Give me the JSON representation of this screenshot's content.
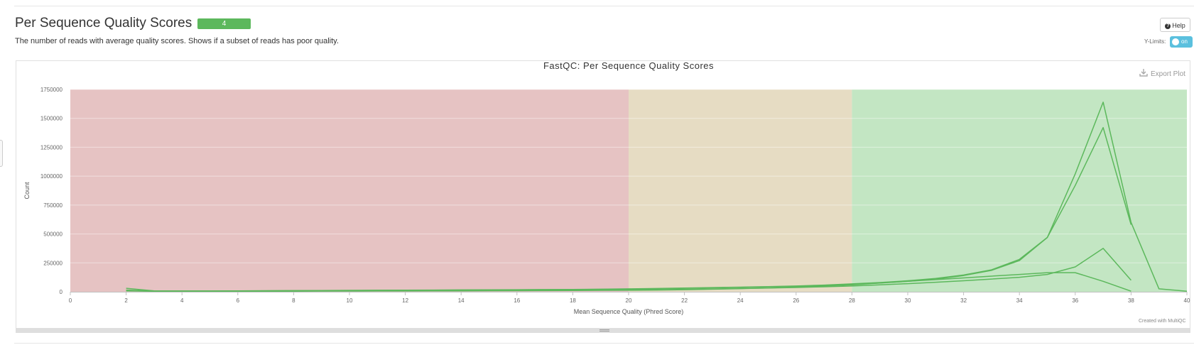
{
  "section": {
    "title": "Per Sequence Quality Scores",
    "badge": "4",
    "description": "The number of reads with average quality scores. Shows if a subset of reads has poor quality."
  },
  "controls": {
    "help_label": "Help",
    "ylimits_label": "Y-Limits:",
    "ylimits_state": "on",
    "export_label": "Export Plot",
    "credit": "Created with MultiQC"
  },
  "chart_data": {
    "type": "line",
    "title": "FastQC: Per Sequence Quality Scores",
    "xlabel": "Mean Sequence Quality (Phred Score)",
    "ylabel": "Count",
    "xlim": [
      0,
      40
    ],
    "ylim": [
      0,
      1750000
    ],
    "xticks": [
      0,
      2,
      4,
      6,
      8,
      10,
      12,
      14,
      16,
      18,
      20,
      22,
      24,
      26,
      28,
      30,
      32,
      34,
      36,
      38,
      40
    ],
    "yticks": [
      0,
      250000,
      500000,
      750000,
      1000000,
      1250000,
      1500000,
      1750000
    ],
    "grid": true,
    "legend": false,
    "bands": [
      {
        "from": 0,
        "to": 20,
        "color": "#e6c3c3"
      },
      {
        "from": 20,
        "to": 28,
        "color": "#e6dcc3"
      },
      {
        "from": 28,
        "to": 40,
        "color": "#c3e6c3"
      }
    ],
    "line_color": "#5cb85c",
    "series": [
      {
        "x": [
          2,
          3,
          4,
          5,
          6,
          7,
          8,
          9,
          10,
          11,
          12,
          13,
          14,
          15,
          16,
          17,
          18,
          19,
          20,
          21,
          22,
          23,
          24,
          25,
          26,
          27,
          28,
          29,
          30,
          31,
          32,
          33,
          34,
          35,
          36,
          37,
          38,
          39,
          40
        ],
        "values": [
          30000,
          8000,
          7000,
          7000,
          8000,
          9000,
          10000,
          11000,
          12000,
          13000,
          14000,
          15000,
          16000,
          17000,
          18000,
          19000,
          20000,
          22000,
          25000,
          28000,
          32000,
          36000,
          40000,
          45000,
          50000,
          58000,
          68000,
          80000,
          95000,
          115000,
          145000,
          190000,
          280000,
          470000,
          1020000,
          1640000,
          600000,
          25000,
          5000
        ]
      },
      {
        "x": [
          2,
          3,
          4,
          5,
          6,
          7,
          8,
          9,
          10,
          11,
          12,
          13,
          14,
          15,
          16,
          17,
          18,
          19,
          20,
          21,
          22,
          23,
          24,
          25,
          26,
          27,
          28,
          29,
          30,
          31,
          32,
          33,
          34,
          35,
          36,
          37,
          38
        ],
        "values": [
          15000,
          6000,
          6000,
          6000,
          7000,
          8000,
          9000,
          10000,
          11000,
          12000,
          13000,
          14000,
          15000,
          16000,
          17000,
          18000,
          19000,
          21000,
          23000,
          26000,
          30000,
          34000,
          38000,
          43000,
          48000,
          55000,
          65000,
          76000,
          90000,
          110000,
          140000,
          185000,
          270000,
          470000,
          920000,
          1420000,
          580000
        ]
      },
      {
        "x": [
          2,
          3,
          4,
          5,
          6,
          7,
          8,
          9,
          10,
          11,
          12,
          13,
          14,
          15,
          16,
          17,
          18,
          19,
          20,
          21,
          22,
          23,
          24,
          25,
          26,
          27,
          28,
          29,
          30,
          31,
          32,
          33,
          34,
          35,
          36,
          37,
          38
        ],
        "values": [
          10000,
          5000,
          5000,
          5000,
          6000,
          6000,
          7000,
          7000,
          8000,
          8000,
          9000,
          9000,
          10000,
          10000,
          11000,
          12000,
          13000,
          14000,
          16000,
          18000,
          21000,
          24000,
          28000,
          32000,
          37000,
          43000,
          50000,
          60000,
          70000,
          82000,
          95000,
          110000,
          125000,
          150000,
          215000,
          375000,
          100000
        ]
      },
      {
        "x": [
          2,
          3,
          4,
          5,
          6,
          7,
          8,
          9,
          10,
          11,
          12,
          13,
          14,
          15,
          16,
          17,
          18,
          19,
          20,
          21,
          22,
          23,
          24,
          25,
          26,
          27,
          28,
          29,
          30,
          31,
          32,
          33,
          34,
          35,
          36,
          37,
          38
        ],
        "values": [
          8000,
          4000,
          4000,
          4000,
          5000,
          5000,
          5000,
          6000,
          6000,
          7000,
          7000,
          8000,
          8000,
          9000,
          9000,
          10000,
          11000,
          12000,
          13000,
          15000,
          18000,
          22000,
          27000,
          33000,
          40000,
          50000,
          60000,
          75000,
          90000,
          105000,
          120000,
          135000,
          150000,
          165000,
          165000,
          90000,
          5000
        ]
      }
    ]
  }
}
